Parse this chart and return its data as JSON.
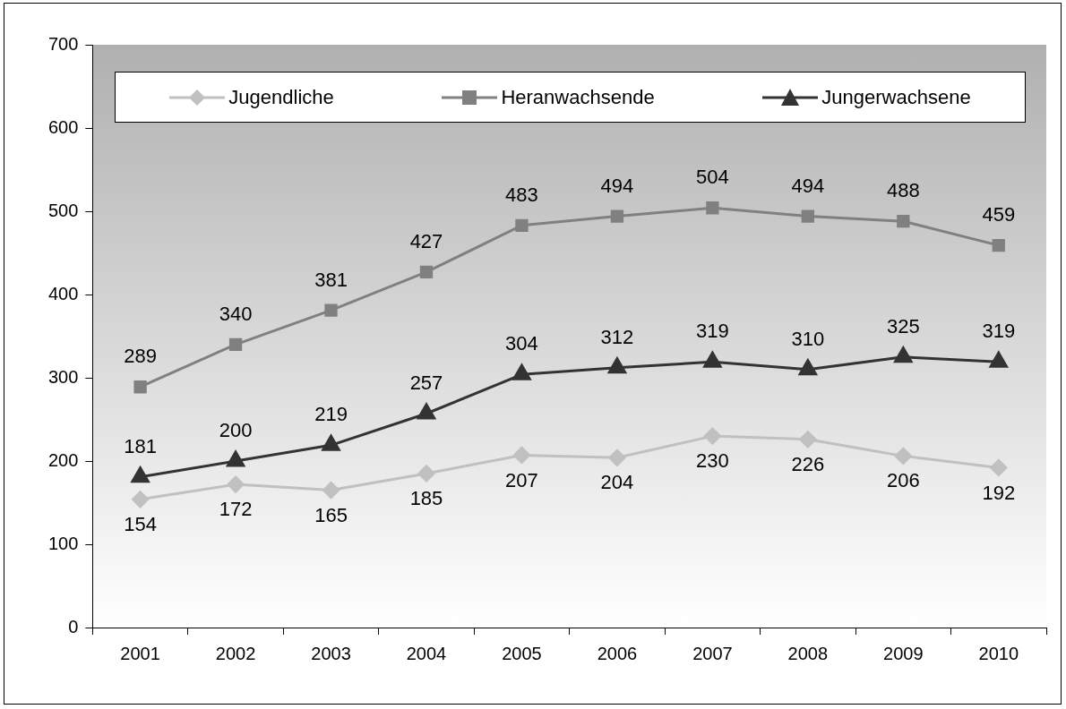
{
  "chart_data": {
    "type": "line",
    "categories": [
      "2001",
      "2002",
      "2003",
      "2004",
      "2005",
      "2006",
      "2007",
      "2008",
      "2009",
      "2010"
    ],
    "series": [
      {
        "name": "Jugendliche",
        "color": "#c0c0c0",
        "marker": "diamond",
        "values": [
          154,
          172,
          165,
          185,
          207,
          204,
          230,
          226,
          206,
          192
        ]
      },
      {
        "name": "Heranwachsende",
        "color": "#808080",
        "marker": "square",
        "values": [
          289,
          340,
          381,
          427,
          483,
          494,
          504,
          494,
          488,
          459
        ]
      },
      {
        "name": "Jungerwachsene",
        "color": "#333333",
        "marker": "triangle",
        "values": [
          181,
          200,
          219,
          257,
          304,
          312,
          319,
          310,
          325,
          319
        ]
      }
    ],
    "ylim": [
      0,
      700
    ],
    "yticks": [
      0,
      100,
      200,
      300,
      400,
      500,
      600,
      700
    ],
    "grid": false,
    "legend": "top",
    "line_style": "solid",
    "data_labels": true
  }
}
